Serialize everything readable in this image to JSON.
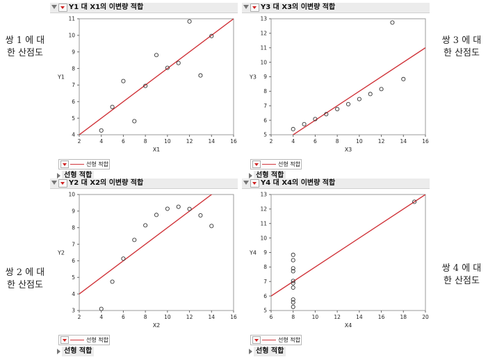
{
  "side_labels": [
    {
      "lines": [
        "쌍 1 에 대",
        "한 산점도"
      ]
    },
    {
      "lines": [
        "쌍 3 에 대",
        "한 산점도"
      ]
    },
    {
      "lines": [
        "쌍 2 에 대",
        "한 산점도"
      ]
    },
    {
      "lines": [
        "쌍 4 에 대",
        "한 산점도"
      ]
    }
  ],
  "legend_label": "선형 적합",
  "fit_label": "선형 적합",
  "colors": {
    "fit_line": "#d0343a",
    "marker": "#333333",
    "header_bg": "#ececec"
  },
  "chart_data": [
    {
      "type": "scatter",
      "title": "Y1 대 X1의 이변량 적합",
      "xlabel": "X1",
      "ylabel": "Y1",
      "xlim": [
        2,
        16
      ],
      "ylim": [
        4,
        11
      ],
      "xticks": [
        2,
        4,
        6,
        8,
        10,
        12,
        14,
        16
      ],
      "yticks": [
        4,
        5,
        6,
        7,
        8,
        9,
        10,
        11
      ],
      "x": [
        10,
        8,
        13,
        9,
        11,
        14,
        6,
        4,
        12,
        7,
        5
      ],
      "y": [
        8.04,
        6.95,
        7.58,
        8.81,
        8.33,
        9.96,
        7.24,
        4.26,
        10.84,
        4.82,
        5.68
      ],
      "fit": {
        "intercept": 3.0,
        "slope": 0.5
      }
    },
    {
      "type": "scatter",
      "title": "Y3 대 X3의 이변량 적합",
      "xlabel": "X3",
      "ylabel": "Y3",
      "xlim": [
        2,
        16
      ],
      "ylim": [
        5,
        13
      ],
      "xticks": [
        2,
        4,
        6,
        8,
        10,
        12,
        14,
        16
      ],
      "yticks": [
        5,
        6,
        7,
        8,
        9,
        10,
        11,
        12,
        13
      ],
      "x": [
        10,
        8,
        13,
        9,
        11,
        14,
        6,
        4,
        12,
        7,
        5
      ],
      "y": [
        7.46,
        6.77,
        12.74,
        7.11,
        7.81,
        8.84,
        6.08,
        5.39,
        8.15,
        6.42,
        5.73
      ],
      "fit": {
        "intercept": 3.0,
        "slope": 0.5
      }
    },
    {
      "type": "scatter",
      "title": "Y2 대 X2의 이변량 적합",
      "xlabel": "X2",
      "ylabel": "Y2",
      "xlim": [
        2,
        16
      ],
      "ylim": [
        3,
        10
      ],
      "xticks": [
        2,
        4,
        6,
        8,
        10,
        12,
        14,
        16
      ],
      "yticks": [
        3,
        4,
        5,
        6,
        7,
        8,
        9,
        10
      ],
      "x": [
        10,
        8,
        13,
        9,
        11,
        14,
        6,
        4,
        12,
        7,
        5
      ],
      "y": [
        9.14,
        8.14,
        8.74,
        8.77,
        9.26,
        8.1,
        6.13,
        3.1,
        9.13,
        7.26,
        4.74
      ],
      "fit": {
        "intercept": 3.0,
        "slope": 0.5
      }
    },
    {
      "type": "scatter",
      "title": "Y4 대 X4의 이변량 적합",
      "xlabel": "X4",
      "ylabel": "Y4",
      "xlim": [
        6,
        20
      ],
      "ylim": [
        5,
        13
      ],
      "xticks": [
        6,
        8,
        10,
        12,
        14,
        16,
        18,
        20
      ],
      "yticks": [
        5,
        6,
        7,
        8,
        9,
        10,
        11,
        12,
        13
      ],
      "x": [
        8,
        8,
        8,
        8,
        8,
        8,
        8,
        19,
        8,
        8,
        8
      ],
      "y": [
        6.58,
        5.76,
        7.71,
        8.84,
        8.47,
        7.04,
        5.25,
        12.5,
        5.56,
        7.91,
        6.89
      ],
      "fit": {
        "intercept": 3.0,
        "slope": 0.5
      }
    }
  ]
}
